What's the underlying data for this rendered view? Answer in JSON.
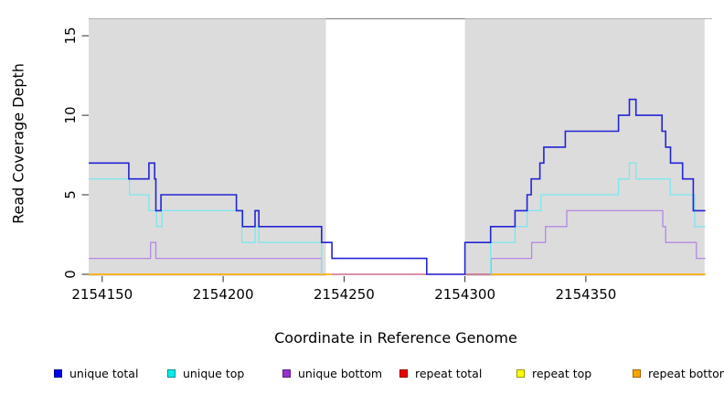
{
  "figure": {
    "xlabel": "Coordinate in Reference Genome",
    "ylabel": "Read Coverage Depth"
  },
  "legend": {
    "items": [
      {
        "label": "unique total",
        "color": "#0000EE"
      },
      {
        "label": "unique top",
        "color": "#00EEEE"
      },
      {
        "label": "unique bottom",
        "color": "#9A32CD"
      },
      {
        "label": "repeat total",
        "color": "#EE0000"
      },
      {
        "label": "repeat top",
        "color": "#FFFF00"
      },
      {
        "label": "repeat bottom",
        "color": "#FFA500"
      }
    ]
  },
  "chart_data": {
    "type": "line",
    "subtype": "step-coverage",
    "title": "",
    "xlabel": "Coordinate in Reference Genome",
    "ylabel": "Read Coverage Depth",
    "xlim": [
      2154144.4,
      2154402.2
    ],
    "ylim": [
      0,
      16.1
    ],
    "x_ticks": [
      2154150,
      2154200,
      2154250,
      2154300,
      2154350
    ],
    "y_ticks": [
      0,
      5,
      10,
      15
    ],
    "grid": false,
    "legend_position": "bottom",
    "background_bands": {
      "color": "#DCDCDC",
      "comment": "gray = regions covered by reads; white gap = zero/low unique coverage region",
      "regions": [
        [
          2154144.4,
          2154242.5
        ],
        [
          2154300,
          2154399.1
        ]
      ]
    },
    "gap_region": [
      2154242.5,
      2154300
    ],
    "series": [
      {
        "id": "repeat-top",
        "name": "repeat top",
        "color": "#ffff00",
        "width": 1.2,
        "parts": [
          [
            [
              2154144.4,
              2154245,
              0
            ]
          ],
          [
            [
              2154311,
              2154399.4,
              0
            ]
          ]
        ]
      },
      {
        "id": "repeat-bottom",
        "name": "repeat bottom",
        "color": "#ffa500",
        "width": 1.5,
        "parts": [
          [
            [
              2154144.4,
              2154245,
              0
            ]
          ],
          [
            [
              2154311,
              2154399.4,
              0
            ]
          ]
        ]
      },
      {
        "id": "repeat-total",
        "name": "repeat total",
        "color": "#c25070",
        "width": 1.2,
        "parts": [
          [
            [
              2154245,
              2154311,
              0
            ]
          ]
        ]
      },
      {
        "id": "unique-bottom",
        "name": "unique bottom",
        "color": "#b687e2",
        "width": 1.3,
        "parts": [
          [
            [
              2154144.4,
              2154170,
              1
            ],
            [
              2154170,
              2154172.2,
              2
            ],
            [
              2154172.2,
              2154240.7,
              1
            ],
            [
              2154240.7,
              2154240.7,
              0
            ]
          ],
          [
            [
              2154310.8,
              2154310.8,
              0
            ],
            [
              2154310.8,
              2154327.6,
              1
            ],
            [
              2154327.6,
              2154333.3,
              2
            ],
            [
              2154333.3,
              2154342.1,
              3
            ],
            [
              2154342.1,
              2154381.8,
              4
            ],
            [
              2154381.8,
              2154383,
              3
            ],
            [
              2154383,
              2154395.7,
              2
            ],
            [
              2154395.7,
              2154399.4,
              1
            ]
          ]
        ]
      },
      {
        "id": "unique-top",
        "name": "unique top",
        "color": "#7ee6ee",
        "width": 1.3,
        "parts": [
          [
            [
              2154144.4,
              2154161.3,
              6
            ],
            [
              2154161.3,
              2154169.3,
              5
            ],
            [
              2154169.3,
              2154172.4,
              4
            ],
            [
              2154172.4,
              2154174.7,
              3
            ],
            [
              2154174.7,
              2154207.7,
              4
            ],
            [
              2154207.7,
              2154213.2,
              2
            ],
            [
              2154213.2,
              2154214.8,
              3
            ],
            [
              2154214.8,
              2154240.7,
              2
            ],
            [
              2154240.7,
              2154240.7,
              0
            ]
          ],
          [
            [
              2154310.6,
              2154310.6,
              0
            ],
            [
              2154310.6,
              2154320.7,
              2
            ],
            [
              2154320.7,
              2154325.7,
              3
            ],
            [
              2154325.7,
              2154331.4,
              4
            ],
            [
              2154331.4,
              2154363.5,
              5
            ],
            [
              2154363.5,
              2154368,
              6
            ],
            [
              2154368,
              2154370.7,
              7
            ],
            [
              2154370.7,
              2154384.9,
              6
            ],
            [
              2154384.9,
              2154395,
              5
            ],
            [
              2154395,
              2154399.4,
              3
            ]
          ]
        ]
      },
      {
        "id": "unique-total",
        "name": "unique total",
        "color": "#2323d5",
        "width": 1.6,
        "parts": [
          [
            [
              2154144.4,
              2154161,
              7
            ],
            [
              2154161,
              2154169.3,
              6
            ],
            [
              2154169.3,
              2154171.7,
              7
            ],
            [
              2154171.7,
              2154172.2,
              6
            ],
            [
              2154172.2,
              2154174.3,
              4
            ],
            [
              2154174.3,
              2154205.5,
              5
            ],
            [
              2154205.5,
              2154208,
              4
            ],
            [
              2154208,
              2154213.2,
              3
            ],
            [
              2154213.2,
              2154214.8,
              4
            ],
            [
              2154214.8,
              2154240.7,
              3
            ],
            [
              2154240.7,
              2154245,
              2
            ],
            [
              2154245,
              2154284.2,
              1
            ],
            [
              2154284.2,
              2154300,
              0
            ],
            [
              2154300,
              2154310.6,
              2
            ],
            [
              2154310.6,
              2154320.7,
              3
            ],
            [
              2154320.7,
              2154325.7,
              4
            ],
            [
              2154325.7,
              2154327.4,
              5
            ],
            [
              2154327.4,
              2154331,
              6
            ],
            [
              2154331,
              2154332.6,
              7
            ],
            [
              2154332.6,
              2154341.5,
              8
            ],
            [
              2154341.5,
              2154363.5,
              9
            ],
            [
              2154363.5,
              2154368,
              10
            ],
            [
              2154368,
              2154370.7,
              11
            ],
            [
              2154370.7,
              2154381.5,
              10
            ],
            [
              2154381.5,
              2154383,
              9
            ],
            [
              2154383,
              2154385,
              8
            ],
            [
              2154385,
              2154390,
              7
            ],
            [
              2154390,
              2154394.4,
              6
            ],
            [
              2154394.4,
              2154399.4,
              4
            ]
          ]
        ]
      }
    ]
  }
}
